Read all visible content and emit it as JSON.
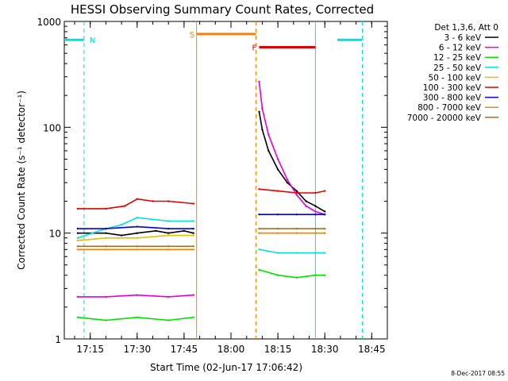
{
  "chart_data": {
    "type": "line",
    "title": "HESSI Observing Summary Count Rates, Corrected",
    "xlabel": "Start Time (02-Jun-17 17:06:42)",
    "ylabel": "Corrected Count Rate (s⁻¹ detector⁻¹)",
    "y_scale": "log",
    "ylim": [
      1,
      1000
    ],
    "xlim": [
      "17:06:42",
      "18:50:00"
    ],
    "x_ticks": [
      "17:15",
      "17:30",
      "17:45",
      "18:00",
      "18:15",
      "18:30",
      "18:45"
    ],
    "y_ticks": [
      "1",
      "10",
      "100",
      "1000"
    ],
    "legend_header": "Det 1,3,6, Att 0",
    "legend_position": "top-right outside",
    "series": [
      {
        "name": "3 - 6 keV",
        "color": "#000000",
        "segments": [
          {
            "x": [
              "17:11",
              "17:20",
              "17:25",
              "17:30",
              "17:36",
              "17:40",
              "17:45",
              "17:48"
            ],
            "y": [
              10,
              10,
              9.5,
              10,
              10.5,
              10,
              10.5,
              10
            ]
          },
          {
            "x": [
              "18:09",
              "18:10",
              "18:12",
              "18:15",
              "18:18",
              "18:21",
              "18:24",
              "18:27",
              "18:30"
            ],
            "y": [
              140,
              95,
              60,
              40,
              30,
              25,
              20,
              18,
              16
            ]
          }
        ]
      },
      {
        "name": "6 - 12 keV",
        "color": "#e000e0",
        "segments": [
          {
            "x": [
              "17:11",
              "17:20",
              "17:30",
              "17:40",
              "17:48"
            ],
            "y": [
              2.5,
              2.5,
              2.6,
              2.5,
              2.6
            ]
          },
          {
            "x": [
              "18:09",
              "18:10",
              "18:12",
              "18:15",
              "18:18",
              "18:21",
              "18:24",
              "18:27",
              "18:30"
            ],
            "y": [
              270,
              150,
              85,
              50,
              32,
              23,
              18,
              16,
              15
            ]
          }
        ]
      },
      {
        "name": "12 - 25 keV",
        "color": "#00e000",
        "segments": [
          {
            "x": [
              "17:11",
              "17:20",
              "17:30",
              "17:40",
              "17:48"
            ],
            "y": [
              1.6,
              1.5,
              1.6,
              1.5,
              1.6
            ]
          },
          {
            "x": [
              "18:09",
              "18:15",
              "18:21",
              "18:27",
              "18:30"
            ],
            "y": [
              4.5,
              4,
              3.8,
              4,
              4
            ]
          }
        ]
      },
      {
        "name": "25 - 50 keV",
        "color": "#00e0e0",
        "segments": [
          {
            "x": [
              "17:11",
              "17:20",
              "17:25",
              "17:30",
              "17:40",
              "17:48"
            ],
            "y": [
              9,
              11,
              12,
              14,
              13,
              13
            ]
          },
          {
            "x": [
              "18:09",
              "18:15",
              "18:21",
              "18:27",
              "18:30"
            ],
            "y": [
              7,
              6.5,
              6.5,
              6.5,
              6.5
            ]
          }
        ]
      },
      {
        "name": "50 - 100 keV",
        "color": "#e0c000",
        "segments": [
          {
            "x": [
              "17:11",
              "17:20",
              "17:30",
              "17:40",
              "17:48"
            ],
            "y": [
              8.5,
              9,
              9,
              9.5,
              9.5
            ]
          },
          {
            "x": [
              "18:09",
              "18:15",
              "18:21",
              "18:27",
              "18:30"
            ],
            "y": [
              10,
              10,
              10,
              10,
              10
            ]
          }
        ]
      },
      {
        "name": "100 - 300 keV",
        "color": "#e00000",
        "segments": [
          {
            "x": [
              "17:11",
              "17:20",
              "17:26",
              "17:30",
              "17:35",
              "17:40",
              "17:48"
            ],
            "y": [
              17,
              17,
              18,
              21,
              20,
              20,
              19
            ]
          },
          {
            "x": [
              "18:09",
              "18:15",
              "18:21",
              "18:27",
              "18:30"
            ],
            "y": [
              26,
              25,
              24,
              24,
              25
            ]
          }
        ]
      },
      {
        "name": "300 - 800 keV",
        "color": "#0000e0",
        "segments": [
          {
            "x": [
              "17:11",
              "17:20",
              "17:30",
              "17:40",
              "17:48"
            ],
            "y": [
              11,
              11,
              11.5,
              11,
              11
            ]
          },
          {
            "x": [
              "18:09",
              "18:15",
              "18:21",
              "18:27",
              "18:30"
            ],
            "y": [
              15,
              15,
              15,
              15,
              15
            ]
          }
        ]
      },
      {
        "name": "800 - 7000 keV",
        "color": "#ff8000",
        "segments": [
          {
            "x": [
              "17:11",
              "17:20",
              "17:30",
              "17:40",
              "17:48"
            ],
            "y": [
              7,
              7,
              7,
              7,
              7
            ]
          },
          {
            "x": [
              "18:09",
              "18:15",
              "18:21",
              "18:27",
              "18:30"
            ],
            "y": [
              10,
              10,
              10,
              10,
              10
            ]
          }
        ]
      },
      {
        "name": "7000 - 20000 keV",
        "color": "#a07020",
        "segments": [
          {
            "x": [
              "17:11",
              "17:20",
              "17:30",
              "17:40",
              "17:48"
            ],
            "y": [
              7.5,
              7.5,
              7.5,
              7.5,
              7.5
            ]
          },
          {
            "x": [
              "18:09",
              "18:15",
              "18:21",
              "18:27",
              "18:30"
            ],
            "y": [
              11,
              11,
              11,
              11,
              11
            ]
          }
        ]
      }
    ],
    "night_flags": [
      {
        "label": "N",
        "color": "#00e0e0",
        "x_start": "17:06:42",
        "x_end": "17:13",
        "y": 670
      },
      {
        "label": "",
        "color": "#00e0e0",
        "x_start": "18:34",
        "x_end": "18:42",
        "y": 670
      }
    ],
    "saa_flags": [
      {
        "label": "S",
        "color": "#ff8000",
        "x_start": "17:49",
        "x_end": "18:08",
        "y": 760
      }
    ],
    "flare_flags": [
      {
        "label": "F",
        "color": "#e00000",
        "x_start": "18:09",
        "x_end": "18:27",
        "y": 570
      }
    ],
    "vertical_markers": [
      {
        "x": "17:13",
        "color": "#00e0e0",
        "style": "dashed"
      },
      {
        "x": "17:49",
        "color": "#ff8000",
        "style": "solid"
      },
      {
        "x": "18:08",
        "color": "#ff8000",
        "style": "dashed"
      },
      {
        "x": "18:27",
        "color": "#00e0e0",
        "style": "solid"
      },
      {
        "x": "18:42",
        "color": "#00e0e0",
        "style": "dashed"
      }
    ],
    "timestamp": "8-Dec-2017 08:55"
  }
}
